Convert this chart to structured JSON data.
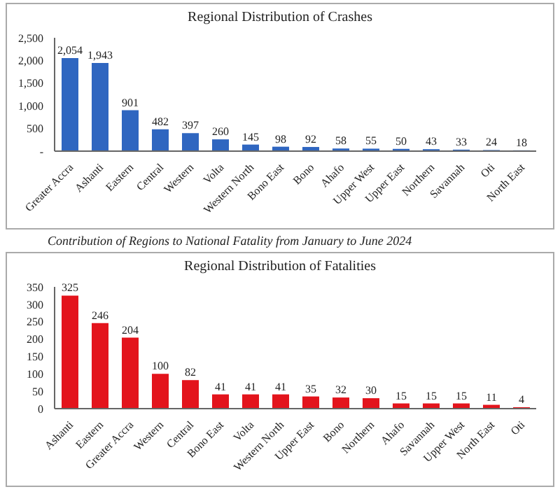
{
  "chart_data": [
    {
      "type": "bar",
      "title": "Regional Distribution of Crashes",
      "categories": [
        "Greater Accra",
        "Ashanti",
        "Eastern",
        "Central",
        "Western",
        "Volta",
        "Western North",
        "Bono East",
        "Bono",
        "Ahafo",
        "Upper West",
        "Upper East",
        "Northern",
        "Savannah",
        "Oti",
        "North East"
      ],
      "values": [
        2054,
        1943,
        901,
        482,
        397,
        260,
        145,
        98,
        92,
        58,
        55,
        50,
        43,
        33,
        24,
        18
      ],
      "value_labels": [
        "2,054",
        "1,943",
        "901",
        "482",
        "397",
        "260",
        "145",
        "98",
        "92",
        "58",
        "55",
        "50",
        "43",
        "33",
        "24",
        "18"
      ],
      "color": "#2f66c0",
      "ylim": [
        0,
        2500
      ],
      "yticks": [
        {
          "value": 0,
          "label": "-"
        },
        500,
        {
          "value": 1000,
          "label": "1,000"
        },
        {
          "value": 1500,
          "label": "1,500"
        },
        {
          "value": 2000,
          "label": "2,000"
        },
        {
          "value": 2500,
          "label": "2,500"
        }
      ]
    },
    {
      "type": "bar",
      "title": "Regional Distribution of Fatalities",
      "annotations": [
        "Contribution of Regions to National Fatality from January to June 2024"
      ],
      "categories": [
        "Ashanti",
        "Eastern",
        "Greater Accra",
        "Western",
        "Central",
        "Bono East",
        "Volta",
        "Western North",
        "Upper East",
        "Bono",
        "Northern",
        "Ahafo",
        "Savannah",
        "Upper West",
        "North East",
        "Oti"
      ],
      "values": [
        325,
        246,
        204,
        100,
        82,
        41,
        41,
        41,
        35,
        32,
        30,
        15,
        15,
        15,
        11,
        4
      ],
      "data_labels": true,
      "color": "#e3141c",
      "ylim": [
        0,
        350
      ],
      "yticks": [
        0,
        50,
        100,
        150,
        200,
        250,
        300,
        350
      ]
    }
  ]
}
